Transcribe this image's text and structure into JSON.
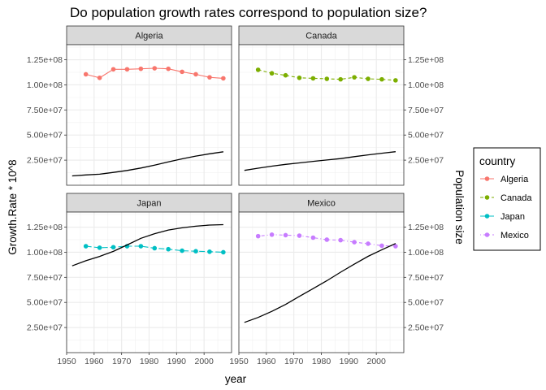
{
  "chart_data": {
    "type": "line",
    "title": "Do population growth rates correspond to population size?",
    "xlabel": "year",
    "ylabel_left": "Growth.Rate * 10^8",
    "ylabel_right": "Population size",
    "xlim": [
      1950,
      2010
    ],
    "ylim": [
      0,
      140000000
    ],
    "x_ticks": [
      1950,
      1960,
      1970,
      1980,
      1990,
      2000
    ],
    "x_tick_labels": [
      "1950",
      "1960",
      "1970",
      "1980",
      "1990",
      "2000"
    ],
    "y_ticks": [
      25000000,
      50000000,
      75000000,
      100000000,
      125000000
    ],
    "y_tick_labels": [
      "2.50e+07",
      "5.00e+07",
      "7.50e+07",
      "1.00e+08",
      "1.25e+08"
    ],
    "grid": true,
    "legend": {
      "title": "country",
      "position": "right",
      "entries": [
        {
          "name": "Algeria",
          "color": "#F8766D",
          "dash": "solid"
        },
        {
          "name": "Canada",
          "color": "#7CAE00",
          "dash": "dashed"
        },
        {
          "name": "Japan",
          "color": "#00BFC4",
          "dash": "longdash"
        },
        {
          "name": "Mexico",
          "color": "#C77CFF",
          "dash": "dotdash"
        }
      ]
    },
    "facets": [
      {
        "name": "Algeria",
        "color": "#F8766D",
        "dash": "solid",
        "growth_x": [
          1957,
          1962,
          1967,
          1972,
          1977,
          1982,
          1987,
          1992,
          1997,
          2002,
          2007
        ],
        "growth_y": [
          110500000,
          107000000,
          115500000,
          115500000,
          116000000,
          116500000,
          116000000,
          113000000,
          110500000,
          107500000,
          106500000
        ],
        "population_x": [
          1952,
          1957,
          1962,
          1967,
          1972,
          1977,
          1982,
          1987,
          1992,
          1997,
          2002,
          2007
        ],
        "population_y": [
          9279525,
          10270856,
          11000948,
          12760499,
          14760787,
          17152804,
          20033753,
          23254956,
          26298373,
          29072015,
          31287142,
          33333216
        ]
      },
      {
        "name": "Canada",
        "color": "#7CAE00",
        "dash": "dashed",
        "growth_x": [
          1957,
          1962,
          1967,
          1972,
          1977,
          1982,
          1987,
          1992,
          1997,
          2002,
          2007
        ],
        "growth_y": [
          115000000,
          111500000,
          109500000,
          107000000,
          106500000,
          106000000,
          105500000,
          107500000,
          106000000,
          105500000,
          104500000
        ],
        "population_x": [
          1952,
          1957,
          1962,
          1967,
          1972,
          1977,
          1982,
          1987,
          1992,
          1997,
          2002,
          2007
        ],
        "population_y": [
          14785584,
          17010154,
          18985849,
          20819767,
          22284500,
          23796400,
          25201900,
          26549700,
          28523502,
          30305843,
          31902268,
          33390141
        ]
      },
      {
        "name": "Japan",
        "color": "#00BFC4",
        "dash": "longdash",
        "growth_x": [
          1957,
          1962,
          1967,
          1972,
          1977,
          1982,
          1987,
          1992,
          1997,
          2002,
          2007
        ],
        "growth_y": [
          106000000,
          104500000,
          105000000,
          106000000,
          106000000,
          104000000,
          103000000,
          101500000,
          101000000,
          100500000,
          100000000
        ],
        "population_x": [
          1952,
          1957,
          1962,
          1967,
          1972,
          1977,
          1982,
          1987,
          1992,
          1997,
          2002,
          2007
        ],
        "population_y": [
          86459025,
          91563009,
          95831757,
          100825279,
          107188273,
          113872473,
          118454974,
          122091325,
          124329269,
          125956499,
          127065841,
          127467972
        ]
      },
      {
        "name": "Mexico",
        "color": "#C77CFF",
        "dash": "dotdash",
        "growth_x": [
          1957,
          1962,
          1967,
          1972,
          1977,
          1982,
          1987,
          1992,
          1997,
          2002,
          2007
        ],
        "growth_y": [
          116000000,
          117500000,
          117000000,
          116500000,
          114500000,
          112500000,
          112000000,
          110000000,
          108500000,
          106500000,
          106000000
        ],
        "population_x": [
          1952,
          1957,
          1962,
          1967,
          1972,
          1977,
          1982,
          1987,
          1992,
          1997,
          2002,
          2007
        ],
        "population_y": [
          30144317,
          35015548,
          41121485,
          47995559,
          55984294,
          63759976,
          71640904,
          80122492,
          88111030,
          95895146,
          102479927,
          108700891
        ]
      }
    ]
  }
}
